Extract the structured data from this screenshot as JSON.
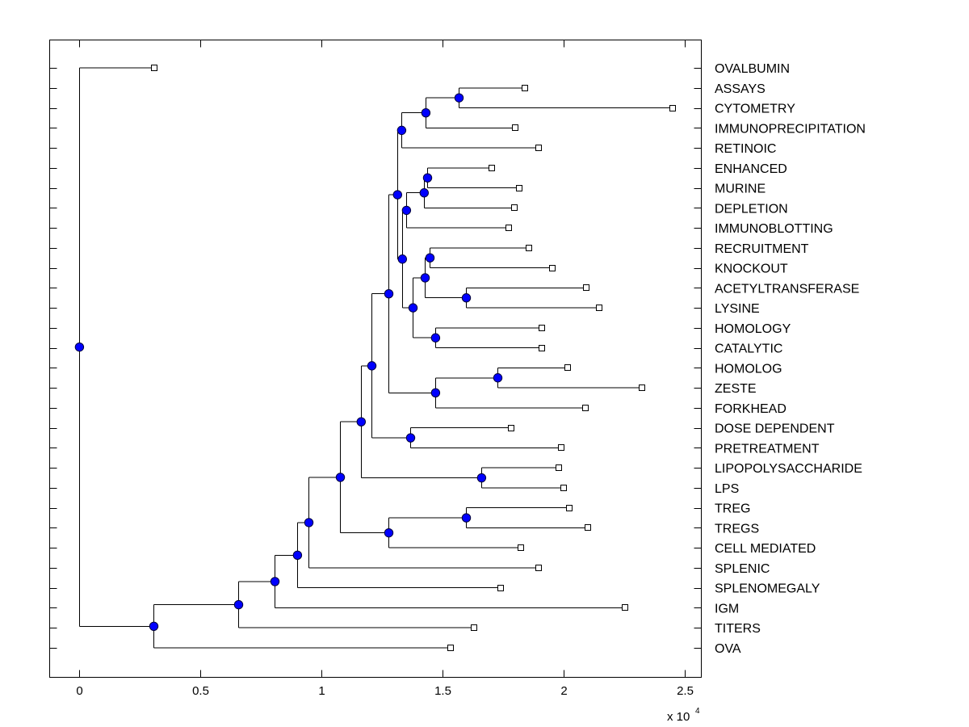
{
  "chart_data": {
    "type": "dendrogram",
    "title": "",
    "xlabel": "",
    "ylabel": "",
    "x_exponent_label": "x 10",
    "x_exponent_power": "4",
    "xlim": [
      -0.123,
      2.567
    ],
    "xticks": [
      0,
      0.5,
      1,
      1.5,
      2,
      2.5
    ],
    "xtick_labels": [
      "0",
      "0.5",
      "1",
      "1.5",
      "2",
      "2.5"
    ],
    "grid": false,
    "colors": {
      "node": "#0000ff",
      "leaf": "#ffffff",
      "line": "#000000"
    },
    "leaves_top_to_bottom": [
      {
        "label": "OVALBUMIN",
        "x": 0.307
      },
      {
        "label": "ASSAYS",
        "x": 1.84
      },
      {
        "label": "CYTOMETRY",
        "x": 2.447
      },
      {
        "label": "IMMUNOPRECIPITATION",
        "x": 1.8
      },
      {
        "label": "RETINOIC",
        "x": 1.897
      },
      {
        "label": "ENHANCED",
        "x": 1.703
      },
      {
        "label": "MURINE",
        "x": 1.817
      },
      {
        "label": "DEPLETION",
        "x": 1.797
      },
      {
        "label": "IMMUNOBLOTTING",
        "x": 1.773
      },
      {
        "label": "RECRUITMENT",
        "x": 1.857
      },
      {
        "label": "KNOCKOUT",
        "x": 1.953
      },
      {
        "label": "ACETYLTRANSFERASE",
        "x": 2.093
      },
      {
        "label": "LYSINE",
        "x": 2.147
      },
      {
        "label": "HOMOLOGY",
        "x": 1.907
      },
      {
        "label": "CATALYTIC",
        "x": 1.91
      },
      {
        "label": "HOMOLOG",
        "x": 2.017
      },
      {
        "label": "ZESTE",
        "x": 2.323
      },
      {
        "label": "FORKHEAD",
        "x": 2.09
      },
      {
        "label": "DOSE DEPENDENT",
        "x": 1.783
      },
      {
        "label": "PRETREATMENT",
        "x": 1.99
      },
      {
        "label": "LIPOPOLYSACCHARIDE",
        "x": 1.98
      },
      {
        "label": "LPS",
        "x": 2.0
      },
      {
        "label": "TREG",
        "x": 2.023
      },
      {
        "label": "TREGS",
        "x": 2.1
      },
      {
        "label": "CELL MEDIATED",
        "x": 1.823
      },
      {
        "label": "SPLENIC",
        "x": 1.897
      },
      {
        "label": "SPLENOMEGALY",
        "x": 1.74
      },
      {
        "label": "IGM",
        "x": 2.253
      },
      {
        "label": "TITERS",
        "x": 1.63
      },
      {
        "label": "OVA",
        "x": 1.533
      }
    ],
    "tree": {
      "x": 0,
      "children": [
        {
          "leaf": 0
        },
        {
          "x": 0.307,
          "children": [
            {
              "x": 0.657,
              "children": [
                {
                  "x": 0.807,
                  "children": [
                    {
                      "x": 0.9,
                      "children": [
                        {
                          "x": 0.947,
                          "children": [
                            {
                              "x": 1.077,
                              "children": [
                                {
                                  "x": 1.163,
                                  "children": [
                                    {
                                      "x": 1.207,
                                      "children": [
                                        {
                                          "x": 1.277,
                                          "children": [
                                            {
                                              "x": 1.313,
                                              "children": [
                                                {
                                                  "x": 1.33,
                                                  "children": [
                                                    {
                                                      "x": 1.43,
                                                      "children": [
                                                        {
                                                          "x": 1.567,
                                                          "children": [
                                                            {
                                                              "leaf": 1
                                                            },
                                                            {
                                                              "leaf": 2
                                                            }
                                                          ]
                                                        },
                                                        {
                                                          "leaf": 3
                                                        }
                                                      ]
                                                    },
                                                    {
                                                      "leaf": 4
                                                    }
                                                  ]
                                                },
                                                {
                                                  "x": 1.333,
                                                  "children": [
                                                    {
                                                      "x": 1.35,
                                                      "children": [
                                                        {
                                                          "x": 1.423,
                                                          "children": [
                                                            {
                                                              "x": 1.437,
                                                              "children": [
                                                                {
                                                                  "leaf": 5
                                                                },
                                                                {
                                                                  "leaf": 6
                                                                }
                                                              ]
                                                            },
                                                            {
                                                              "leaf": 7
                                                            }
                                                          ]
                                                        },
                                                        {
                                                          "leaf": 8
                                                        }
                                                      ]
                                                    },
                                                    {
                                                      "x": 1.377,
                                                      "children": [
                                                        {
                                                          "x": 1.427,
                                                          "children": [
                                                            {
                                                              "x": 1.447,
                                                              "children": [
                                                                {
                                                                  "leaf": 9
                                                                },
                                                                {
                                                                  "leaf": 10
                                                                }
                                                              ]
                                                            },
                                                            {
                                                              "x": 1.597,
                                                              "children": [
                                                                {
                                                                  "leaf": 11
                                                                },
                                                                {
                                                                  "leaf": 12
                                                                }
                                                              ]
                                                            }
                                                          ]
                                                        },
                                                        {
                                                          "x": 1.47,
                                                          "children": [
                                                            {
                                                              "leaf": 13
                                                            },
                                                            {
                                                              "leaf": 14
                                                            }
                                                          ]
                                                        }
                                                      ]
                                                    }
                                                  ]
                                                }
                                              ]
                                            },
                                            {
                                              "x": 1.47,
                                              "children": [
                                                {
                                                  "x": 1.727,
                                                  "children": [
                                                    {
                                                      "leaf": 15
                                                    },
                                                    {
                                                      "leaf": 16
                                                    }
                                                  ]
                                                },
                                                {
                                                  "leaf": 17
                                                }
                                              ]
                                            }
                                          ]
                                        },
                                        {
                                          "x": 1.367,
                                          "children": [
                                            {
                                              "leaf": 18
                                            },
                                            {
                                              "leaf": 19
                                            }
                                          ]
                                        }
                                      ]
                                    },
                                    {
                                      "x": 1.66,
                                      "children": [
                                        {
                                          "leaf": 20
                                        },
                                        {
                                          "leaf": 21
                                        }
                                      ]
                                    }
                                  ]
                                },
                                {
                                  "x": 1.277,
                                  "children": [
                                    {
                                      "x": 1.597,
                                      "children": [
                                        {
                                          "leaf": 22
                                        },
                                        {
                                          "leaf": 23
                                        }
                                      ]
                                    },
                                    {
                                      "leaf": 24
                                    }
                                  ]
                                }
                              ]
                            },
                            {
                              "leaf": 25
                            }
                          ]
                        },
                        {
                          "leaf": 26
                        }
                      ]
                    },
                    {
                      "leaf": 27
                    }
                  ]
                },
                {
                  "leaf": 28
                }
              ]
            },
            {
              "leaf": 29
            }
          ]
        }
      ]
    }
  }
}
